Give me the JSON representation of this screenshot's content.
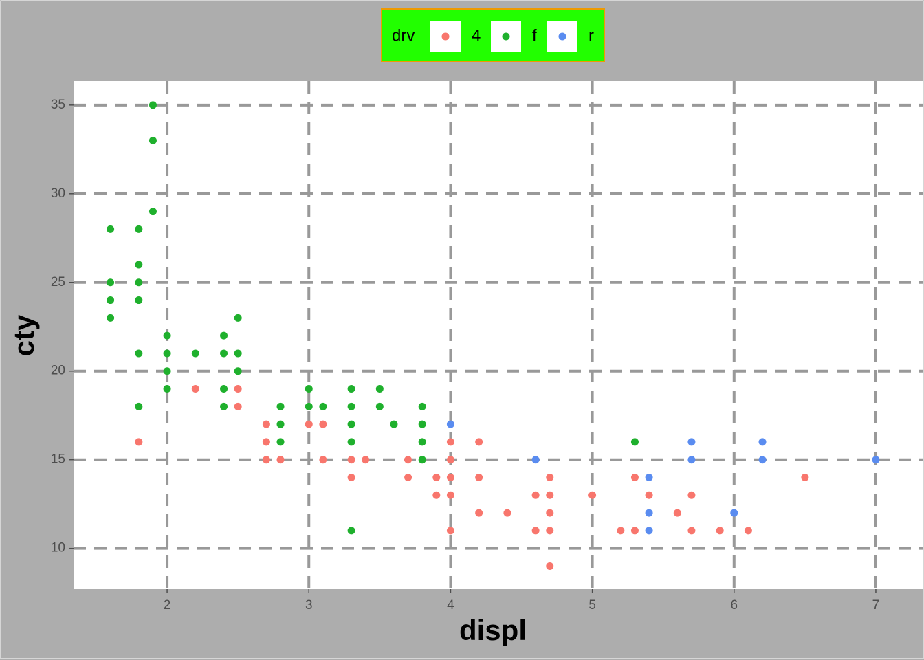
{
  "chart_data": {
    "type": "scatter",
    "x_label": "displ",
    "y_label": "cty",
    "legend_title": "drv",
    "legend_position": "top",
    "grid": true,
    "xlim": [
      1.34,
      7.33
    ],
    "ylim": [
      7.7,
      36.35
    ],
    "xticks": [
      2,
      3,
      4,
      5,
      6,
      7
    ],
    "yticks": [
      10,
      15,
      20,
      25,
      30,
      35
    ],
    "series": [
      {
        "name": "4",
        "color": "#f8766d",
        "x": [
          1.8,
          2.2,
          2.5,
          2.5,
          2.7,
          2.7,
          2.7,
          2.8,
          3.0,
          3.1,
          3.1,
          3.3,
          3.3,
          3.4,
          3.7,
          3.7,
          3.9,
          3.9,
          4.0,
          4.0,
          4.0,
          4.0,
          4.0,
          4.2,
          4.2,
          4.2,
          4.4,
          4.6,
          4.6,
          4.7,
          4.7,
          4.7,
          4.7,
          4.7,
          5.0,
          5.2,
          5.3,
          5.3,
          5.4,
          5.6,
          5.7,
          5.7,
          5.9,
          6.1,
          6.5
        ],
        "values": [
          16,
          19,
          19,
          18,
          17,
          16,
          15,
          15,
          17,
          17,
          15,
          15,
          14,
          15,
          15,
          14,
          14,
          13,
          16,
          15,
          14,
          13,
          11,
          16,
          14,
          12,
          12,
          13,
          11,
          14,
          13,
          12,
          11,
          9,
          13,
          11,
          14,
          11,
          13,
          12,
          13,
          11,
          11,
          11,
          14
        ]
      },
      {
        "name": "f",
        "color": "#1fb02d",
        "x": [
          1.6,
          1.6,
          1.6,
          1.6,
          1.8,
          1.8,
          1.8,
          1.8,
          1.8,
          1.8,
          1.9,
          1.9,
          1.9,
          2.0,
          2.0,
          2.0,
          2.0,
          2.2,
          2.4,
          2.4,
          2.4,
          2.4,
          2.5,
          2.5,
          2.5,
          2.8,
          2.8,
          2.8,
          3.0,
          3.0,
          3.1,
          3.3,
          3.3,
          3.3,
          3.3,
          3.3,
          3.5,
          3.5,
          3.6,
          3.8,
          3.8,
          3.8,
          3.8,
          5.3
        ],
        "values": [
          28,
          25,
          24,
          23,
          28,
          26,
          25,
          24,
          21,
          18,
          35,
          33,
          29,
          22,
          21,
          20,
          19,
          21,
          22,
          21,
          19,
          18,
          23,
          21,
          20,
          18,
          17,
          16,
          19,
          18,
          18,
          19,
          18,
          17,
          16,
          11,
          19,
          18,
          17,
          18,
          17,
          16,
          15,
          16
        ]
      },
      {
        "name": "r",
        "color": "#5a8cf0",
        "x": [
          4.0,
          4.6,
          5.4,
          5.4,
          5.4,
          5.7,
          5.7,
          6.0,
          6.2,
          6.2,
          7.0
        ],
        "values": [
          17,
          15,
          14,
          12,
          11,
          16,
          15,
          12,
          16,
          15,
          15
        ]
      }
    ]
  }
}
